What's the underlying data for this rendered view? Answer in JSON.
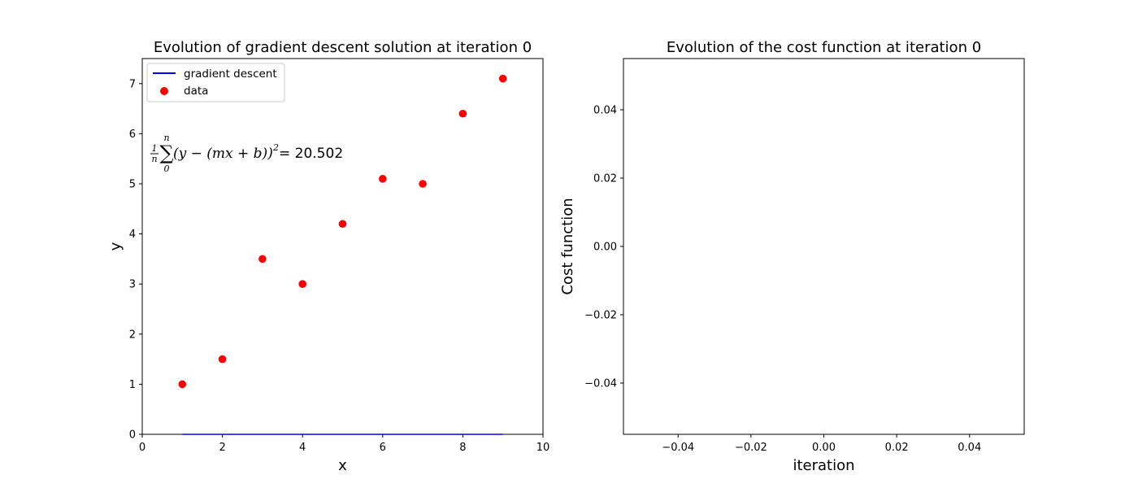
{
  "chart_data": [
    {
      "type": "scatter",
      "title": "Evolution of gradient descent solution at iteration 0",
      "xlabel": "x",
      "ylabel": "y",
      "xlim": [
        0,
        10
      ],
      "ylim": [
        0,
        7.5
      ],
      "xticks": [
        0,
        2,
        4,
        6,
        8,
        10
      ],
      "yticks": [
        0,
        1,
        2,
        3,
        4,
        5,
        6,
        7
      ],
      "grid": false,
      "legend_position": "top-left",
      "series": [
        {
          "name": "gradient descent",
          "kind": "line",
          "color": "#0000ff",
          "x": [
            1,
            9
          ],
          "y": [
            0,
            0
          ]
        },
        {
          "name": "data",
          "kind": "scatter",
          "color": "#ff0000",
          "x": [
            1,
            2,
            3,
            4,
            5,
            6,
            7,
            8,
            9
          ],
          "y": [
            1.0,
            1.5,
            3.5,
            3.0,
            4.2,
            5.1,
            5.0,
            6.4,
            7.1
          ]
        }
      ],
      "annotation": {
        "frac_num": "1",
        "frac_den": "n",
        "sum_upper": "n",
        "sum_lower": "0",
        "expr_open": "(y − (mx + b))",
        "power": "2",
        "equals_value": " = 20.502"
      }
    },
    {
      "type": "line",
      "title": "Evolution of the cost function at iteration 0",
      "xlabel": "iteration",
      "ylabel": "Cost function",
      "xlim": [
        -0.055,
        0.055
      ],
      "ylim": [
        -0.055,
        0.055
      ],
      "xticks": [
        "−0.04",
        "−0.02",
        "0.00",
        "0.02",
        "0.04"
      ],
      "xtick_values": [
        -0.04,
        -0.02,
        0.0,
        0.02,
        0.04
      ],
      "yticks": [
        "−0.04",
        "−0.02",
        "0.00",
        "0.02",
        "0.04"
      ],
      "ytick_values": [
        -0.04,
        -0.02,
        0.0,
        0.02,
        0.04
      ],
      "grid": false,
      "series": []
    }
  ]
}
